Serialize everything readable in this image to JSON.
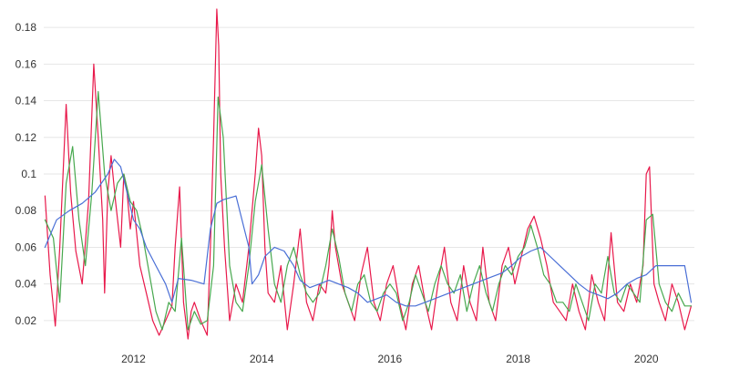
{
  "chart_data": {
    "type": "line",
    "title": "",
    "xlabel": "",
    "ylabel": "",
    "grid": true,
    "legend": "none",
    "xlim": [
      2010.6,
      2020.75
    ],
    "ylim": [
      0.01,
      0.19
    ],
    "y_ticks": [
      0.02,
      0.04,
      0.06,
      0.08,
      0.1,
      0.12,
      0.14,
      0.16,
      0.18
    ],
    "y_tick_labels": [
      "0.02",
      "0.04",
      "0.06",
      "0.08",
      "0.1",
      "0.12",
      "0.14",
      "0.16",
      "0.18"
    ],
    "x_ticks": [
      2012,
      2014,
      2016,
      2018,
      2020
    ],
    "x_tick_labels": [
      "2012",
      "2014",
      "2016",
      "2018",
      "2020"
    ],
    "series": [
      {
        "color": "#e8194b",
        "x": [
          2010.62,
          2010.7,
          2010.78,
          2010.85,
          2010.95,
          2011.02,
          2011.1,
          2011.2,
          2011.3,
          2011.38,
          2011.45,
          2011.52,
          2011.55,
          2011.6,
          2011.65,
          2011.72,
          2011.8,
          2011.85,
          2011.9,
          2011.95,
          2012.0,
          2012.1,
          2012.2,
          2012.3,
          2012.4,
          2012.5,
          2012.6,
          2012.65,
          2012.72,
          2012.78,
          2012.85,
          2012.9,
          2012.95,
          2013.05,
          2013.15,
          2013.2,
          2013.25,
          2013.3,
          2013.33,
          2013.36,
          2013.42,
          2013.5,
          2013.6,
          2013.7,
          2013.8,
          2013.9,
          2013.95,
          2014.0,
          2014.05,
          2014.1,
          2014.2,
          2014.3,
          2014.4,
          2014.5,
          2014.6,
          2014.7,
          2014.8,
          2014.9,
          2015.0,
          2015.05,
          2015.1,
          2015.15,
          2015.25,
          2015.35,
          2015.45,
          2015.55,
          2015.65,
          2015.75,
          2015.85,
          2015.95,
          2016.05,
          2016.15,
          2016.25,
          2016.35,
          2016.45,
          2016.55,
          2016.65,
          2016.75,
          2016.85,
          2016.95,
          2017.05,
          2017.15,
          2017.25,
          2017.35,
          2017.45,
          2017.55,
          2017.65,
          2017.75,
          2017.85,
          2017.95,
          2018.05,
          2018.15,
          2018.25,
          2018.35,
          2018.45,
          2018.55,
          2018.65,
          2018.75,
          2018.85,
          2018.95,
          2019.05,
          2019.15,
          2019.25,
          2019.35,
          2019.45,
          2019.55,
          2019.65,
          2019.75,
          2019.85,
          2019.95,
          2020.0,
          2020.05,
          2020.12,
          2020.2,
          2020.3,
          2020.4,
          2020.5,
          2020.6,
          2020.7
        ],
        "y": [
          0.088,
          0.045,
          0.017,
          0.06,
          0.138,
          0.09,
          0.058,
          0.04,
          0.085,
          0.16,
          0.12,
          0.075,
          0.035,
          0.09,
          0.11,
          0.085,
          0.06,
          0.1,
          0.09,
          0.07,
          0.085,
          0.05,
          0.035,
          0.02,
          0.012,
          0.02,
          0.028,
          0.06,
          0.093,
          0.03,
          0.01,
          0.025,
          0.03,
          0.02,
          0.012,
          0.06,
          0.12,
          0.19,
          0.17,
          0.1,
          0.06,
          0.02,
          0.04,
          0.03,
          0.06,
          0.1,
          0.125,
          0.11,
          0.06,
          0.035,
          0.03,
          0.05,
          0.015,
          0.04,
          0.07,
          0.03,
          0.02,
          0.04,
          0.035,
          0.05,
          0.08,
          0.06,
          0.04,
          0.03,
          0.02,
          0.045,
          0.06,
          0.03,
          0.02,
          0.04,
          0.05,
          0.03,
          0.015,
          0.04,
          0.05,
          0.03,
          0.015,
          0.04,
          0.06,
          0.03,
          0.02,
          0.05,
          0.03,
          0.02,
          0.06,
          0.03,
          0.02,
          0.05,
          0.06,
          0.04,
          0.055,
          0.07,
          0.077,
          0.065,
          0.05,
          0.03,
          0.025,
          0.02,
          0.04,
          0.025,
          0.015,
          0.045,
          0.03,
          0.02,
          0.068,
          0.03,
          0.025,
          0.04,
          0.03,
          0.05,
          0.1,
          0.104,
          0.04,
          0.03,
          0.02,
          0.04,
          0.03,
          0.015,
          0.028
        ]
      },
      {
        "color": "#47a84e",
        "x": [
          2010.62,
          2010.75,
          2010.85,
          2010.95,
          2011.05,
          2011.15,
          2011.25,
          2011.35,
          2011.45,
          2011.55,
          2011.65,
          2011.75,
          2011.85,
          2011.95,
          2012.05,
          2012.15,
          2012.25,
          2012.35,
          2012.45,
          2012.55,
          2012.65,
          2012.75,
          2012.85,
          2012.95,
          2013.05,
          2013.15,
          2013.25,
          2013.32,
          2013.4,
          2013.5,
          2013.6,
          2013.7,
          2013.8,
          2013.9,
          2014.0,
          2014.1,
          2014.2,
          2014.3,
          2014.4,
          2014.5,
          2014.6,
          2014.7,
          2014.8,
          2014.9,
          2015.0,
          2015.1,
          2015.2,
          2015.3,
          2015.4,
          2015.5,
          2015.6,
          2015.7,
          2015.8,
          2015.9,
          2016.0,
          2016.1,
          2016.2,
          2016.3,
          2016.4,
          2016.5,
          2016.6,
          2016.7,
          2016.8,
          2016.9,
          2017.0,
          2017.1,
          2017.2,
          2017.3,
          2017.4,
          2017.5,
          2017.6,
          2017.7,
          2017.8,
          2017.9,
          2018.0,
          2018.1,
          2018.2,
          2018.3,
          2018.4,
          2018.5,
          2018.6,
          2018.7,
          2018.8,
          2018.9,
          2019.0,
          2019.1,
          2019.2,
          2019.3,
          2019.4,
          2019.5,
          2019.6,
          2019.7,
          2019.8,
          2019.9,
          2020.0,
          2020.1,
          2020.2,
          2020.3,
          2020.4,
          2020.5,
          2020.6,
          2020.7
        ],
        "y": [
          0.075,
          0.065,
          0.03,
          0.095,
          0.115,
          0.075,
          0.05,
          0.09,
          0.145,
          0.1,
          0.08,
          0.095,
          0.1,
          0.085,
          0.08,
          0.065,
          0.045,
          0.025,
          0.015,
          0.03,
          0.025,
          0.065,
          0.015,
          0.025,
          0.018,
          0.02,
          0.05,
          0.142,
          0.12,
          0.05,
          0.03,
          0.025,
          0.05,
          0.085,
          0.105,
          0.07,
          0.04,
          0.03,
          0.05,
          0.06,
          0.045,
          0.035,
          0.03,
          0.035,
          0.05,
          0.07,
          0.055,
          0.035,
          0.025,
          0.04,
          0.045,
          0.03,
          0.025,
          0.035,
          0.04,
          0.035,
          0.02,
          0.03,
          0.045,
          0.035,
          0.025,
          0.04,
          0.05,
          0.04,
          0.035,
          0.045,
          0.025,
          0.04,
          0.05,
          0.035,
          0.025,
          0.04,
          0.05,
          0.045,
          0.055,
          0.06,
          0.072,
          0.06,
          0.045,
          0.04,
          0.03,
          0.03,
          0.025,
          0.04,
          0.03,
          0.02,
          0.04,
          0.035,
          0.055,
          0.035,
          0.03,
          0.04,
          0.035,
          0.03,
          0.075,
          0.078,
          0.04,
          0.03,
          0.025,
          0.035,
          0.028,
          0.028
        ]
      },
      {
        "color": "#4a6fd6",
        "x": [
          2010.62,
          2010.8,
          2011.0,
          2011.2,
          2011.4,
          2011.6,
          2011.7,
          2011.8,
          2011.9,
          2012.0,
          2012.1,
          2012.2,
          2012.35,
          2012.5,
          2012.6,
          2012.7,
          2012.9,
          2013.1,
          2013.2,
          2013.3,
          2013.4,
          2013.6,
          2013.8,
          2013.85,
          2013.95,
          2014.05,
          2014.2,
          2014.35,
          2014.5,
          2014.6,
          2014.75,
          2014.9,
          2015.05,
          2015.2,
          2015.35,
          2015.5,
          2015.65,
          2015.8,
          2015.95,
          2016.1,
          2016.25,
          2016.4,
          2016.55,
          2016.7,
          2016.85,
          2017.0,
          2017.15,
          2017.3,
          2017.45,
          2017.6,
          2017.75,
          2017.9,
          2018.05,
          2018.2,
          2018.35,
          2018.5,
          2018.65,
          2018.8,
          2018.95,
          2019.1,
          2019.25,
          2019.4,
          2019.55,
          2019.7,
          2019.85,
          2020.0,
          2020.15,
          2020.3,
          2020.45,
          2020.6,
          2020.7
        ],
        "y": [
          0.06,
          0.075,
          0.08,
          0.084,
          0.09,
          0.1,
          0.108,
          0.104,
          0.09,
          0.075,
          0.07,
          0.06,
          0.05,
          0.04,
          0.03,
          0.043,
          0.042,
          0.04,
          0.07,
          0.084,
          0.086,
          0.088,
          0.06,
          0.04,
          0.045,
          0.055,
          0.06,
          0.058,
          0.05,
          0.042,
          0.038,
          0.04,
          0.042,
          0.04,
          0.038,
          0.035,
          0.03,
          0.032,
          0.034,
          0.03,
          0.028,
          0.028,
          0.03,
          0.032,
          0.034,
          0.036,
          0.038,
          0.04,
          0.042,
          0.044,
          0.046,
          0.05,
          0.055,
          0.058,
          0.06,
          0.055,
          0.05,
          0.045,
          0.04,
          0.036,
          0.034,
          0.032,
          0.035,
          0.04,
          0.043,
          0.045,
          0.05,
          0.05,
          0.05,
          0.05,
          0.03
        ]
      }
    ]
  }
}
